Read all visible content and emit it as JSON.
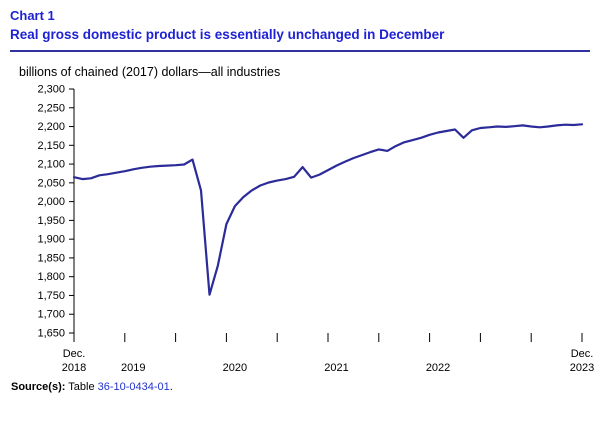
{
  "header": {
    "chart_number": "Chart 1",
    "title": "Real gross domestic product is essentially unchanged in December"
  },
  "colors": {
    "title": "#1f22d4",
    "divider": "#32329e",
    "line": "#2b2b99",
    "axis": "#000000",
    "link": "#2233cc"
  },
  "footer": {
    "source_label": "Source(s):",
    "source_prefix": " Table ",
    "table_link": "36-10-0434-01",
    "source_suffix": "."
  },
  "chart_data": {
    "type": "line",
    "title": "Chart 1",
    "subtitle": "Real gross domestic product is essentially unchanged in December",
    "ylabel": "billions of chained (2017) dollars—all industries",
    "ylim": [
      1650,
      2300
    ],
    "ytick_step": 50,
    "grid": false,
    "legend": "none",
    "frequency": "monthly",
    "x_start_label": "Dec. 2018",
    "x_end_label": "Dec. 2023",
    "x_months": [
      "2018-12",
      "2019-01",
      "2019-02",
      "2019-03",
      "2019-04",
      "2019-05",
      "2019-06",
      "2019-07",
      "2019-08",
      "2019-09",
      "2019-10",
      "2019-11",
      "2019-12",
      "2020-01",
      "2020-02",
      "2020-03",
      "2020-04",
      "2020-05",
      "2020-06",
      "2020-07",
      "2020-08",
      "2020-09",
      "2020-10",
      "2020-11",
      "2020-12",
      "2021-01",
      "2021-02",
      "2021-03",
      "2021-04",
      "2021-05",
      "2021-06",
      "2021-07",
      "2021-08",
      "2021-09",
      "2021-10",
      "2021-11",
      "2021-12",
      "2022-01",
      "2022-02",
      "2022-03",
      "2022-04",
      "2022-05",
      "2022-06",
      "2022-07",
      "2022-08",
      "2022-09",
      "2022-10",
      "2022-11",
      "2022-12",
      "2023-01",
      "2023-02",
      "2023-03",
      "2023-04",
      "2023-05",
      "2023-06",
      "2023-07",
      "2023-08",
      "2023-09",
      "2023-10",
      "2023-11",
      "2023-12"
    ],
    "values": [
      2065,
      2060,
      2062,
      2070,
      2073,
      2077,
      2081,
      2086,
      2090,
      2093,
      2095,
      2096,
      2097,
      2099,
      2112,
      2030,
      1752,
      1830,
      1940,
      1988,
      2012,
      2030,
      2043,
      2051,
      2056,
      2060,
      2066,
      2092,
      2064,
      2072,
      2084,
      2096,
      2106,
      2116,
      2124,
      2132,
      2139,
      2135,
      2148,
      2158,
      2164,
      2170,
      2178,
      2184,
      2188,
      2192,
      2170,
      2190,
      2196,
      2198,
      2200,
      2199,
      2201,
      2203,
      2200,
      2198,
      2200,
      2203,
      2205,
      2204,
      2206
    ],
    "x_axis": {
      "tick_every_months": 6,
      "labels": [
        {
          "month_index": 0,
          "line1": "Dec.",
          "line2": "2018"
        },
        {
          "month_index": 7,
          "line1": "",
          "line2": "2019"
        },
        {
          "month_index": 19,
          "line1": "",
          "line2": "2020"
        },
        {
          "month_index": 31,
          "line1": "",
          "line2": "2021"
        },
        {
          "month_index": 43,
          "line1": "",
          "line2": "2022"
        },
        {
          "month_index": 60,
          "line1": "Dec.",
          "line2": "2023"
        }
      ]
    }
  }
}
